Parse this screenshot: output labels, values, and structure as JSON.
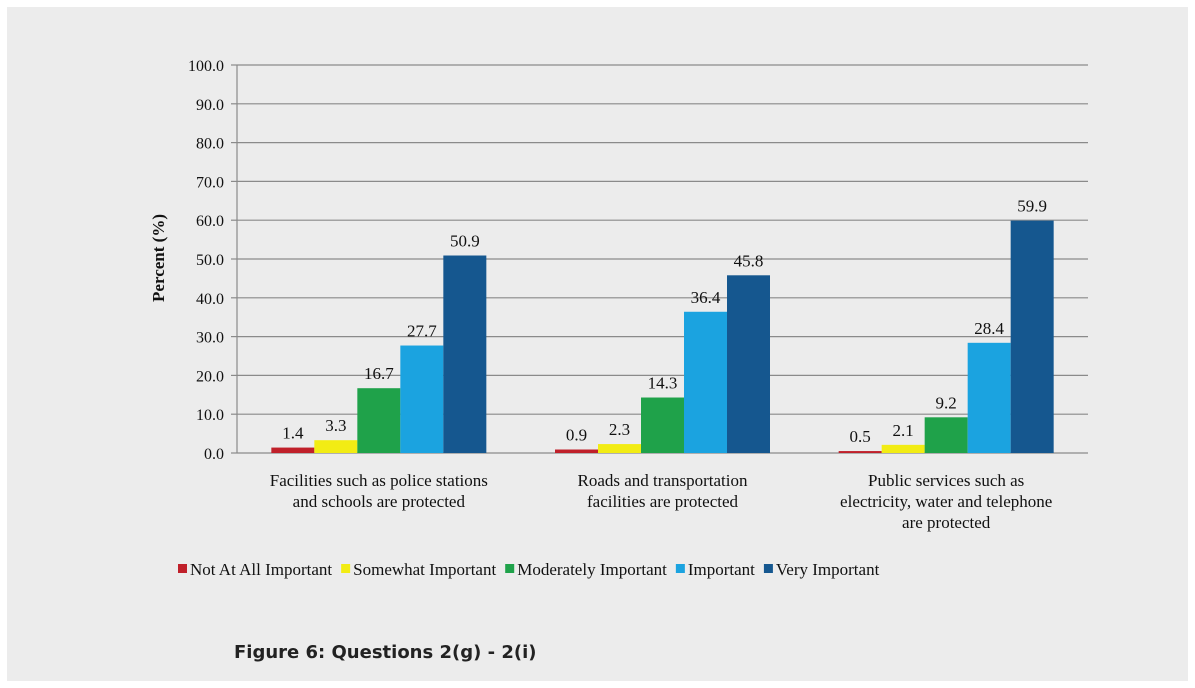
{
  "chart_data": {
    "type": "bar",
    "ylabel": "Percent (%)",
    "ylim": [
      0,
      100
    ],
    "y_ticks": [
      "0.0",
      "10.0",
      "20.0",
      "30.0",
      "40.0",
      "50.0",
      "60.0",
      "70.0",
      "80.0",
      "90.0",
      "100.0"
    ],
    "grid": true,
    "legend_position": "bottom",
    "categories": [
      [
        "Facilities such as police stations",
        "and schools are protected"
      ],
      [
        "Roads and transportation",
        "facilities are protected"
      ],
      [
        "Public services such as",
        "electricity, water and telephone",
        "are protected"
      ]
    ],
    "series": [
      {
        "name": "Not At All Important",
        "color": "#c0202a",
        "values": [
          1.4,
          0.9,
          0.5
        ],
        "labels": [
          "1.4",
          "0.9",
          "0.5"
        ]
      },
      {
        "name": "Somewhat Important",
        "color": "#f2ec14",
        "values": [
          3.3,
          2.3,
          2.1
        ],
        "labels": [
          "3.3",
          "2.3",
          "2.1"
        ]
      },
      {
        "name": "Moderately Important",
        "color": "#1fa24a",
        "values": [
          16.7,
          14.3,
          9.2
        ],
        "labels": [
          "16.7",
          "14.3",
          "9.2"
        ]
      },
      {
        "name": "Important",
        "color": "#1ba3e0",
        "values": [
          27.7,
          36.4,
          28.4
        ],
        "labels": [
          "27.7",
          "36.4",
          "28.4"
        ]
      },
      {
        "name": "Very Important",
        "color": "#15578f",
        "values": [
          50.9,
          45.8,
          59.9
        ],
        "labels": [
          "50.9",
          "45.8",
          "59.9"
        ]
      }
    ]
  },
  "caption": "Figure 6: Questions 2(g) - 2(i)"
}
